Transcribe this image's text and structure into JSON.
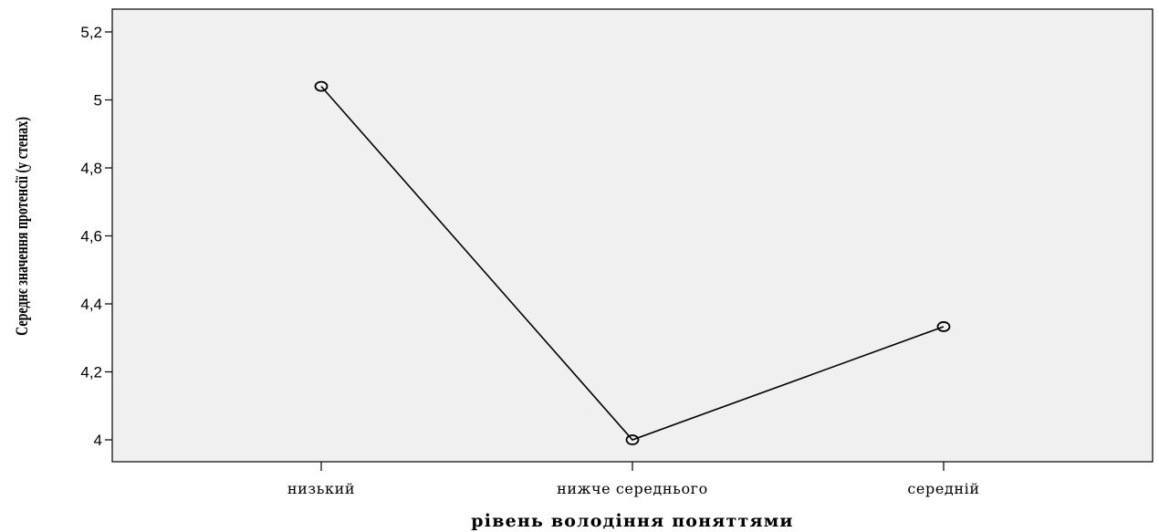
{
  "chart_data": {
    "type": "line",
    "title": "",
    "xlabel": "рівень володіння поняттями",
    "ylabel": "Середнє значення протенсії (у стенах)",
    "categories": [
      "низький",
      "нижче середнього",
      "середній"
    ],
    "series": [
      {
        "values": [
          5.04,
          4.0,
          4.333
        ]
      }
    ],
    "ylim": [
      3.93,
      5.27
    ],
    "yticks": [
      4,
      4.2,
      4.4,
      4.6,
      4.8,
      5,
      5.2
    ],
    "ytick_labels": [
      "4",
      "4,2",
      "4,4",
      "4,6",
      "4,8",
      "5",
      "5,2"
    ],
    "grid": false,
    "legend": "none",
    "colors": {
      "plot_background": "#f0f0f0",
      "line": "#000000",
      "marker_fill": "none"
    }
  }
}
